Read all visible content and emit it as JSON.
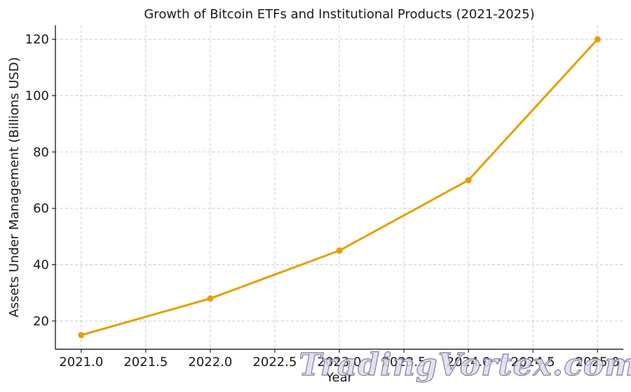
{
  "chart_data": {
    "type": "line",
    "title": "Growth of Bitcoin ETFs and Institutional Products (2021-2025)",
    "xlabel": "Year",
    "ylabel": "Assets Under Management (Billions USD)",
    "xlim": [
      2020.8,
      2025.2
    ],
    "ylim": [
      10,
      125
    ],
    "xticks": [
      "2021.0",
      "2021.5",
      "2022.0",
      "2022.5",
      "2023.0",
      "2023.5",
      "2024.0",
      "2024.5",
      "2025.0"
    ],
    "yticks": [
      "20",
      "40",
      "60",
      "80",
      "100",
      "120"
    ],
    "grid": true,
    "series": [
      {
        "color": "#e69f00",
        "x": [
          2021,
          2022,
          2023,
          2024,
          2025
        ],
        "y": [
          15,
          28,
          45,
          70,
          120
        ]
      }
    ]
  },
  "watermark": {
    "text": "TradingVortex.com"
  }
}
